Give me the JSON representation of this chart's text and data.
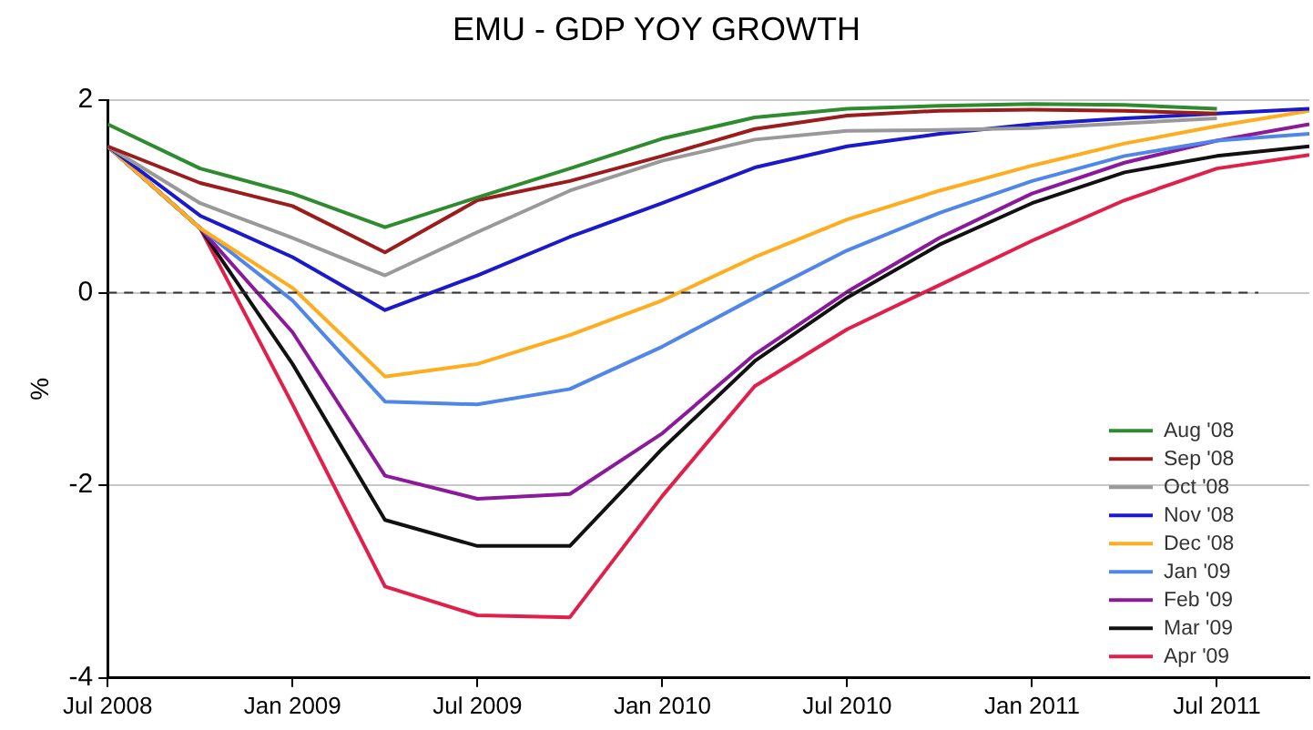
{
  "chart_data": {
    "type": "line",
    "title": "EMU - GDP YOY GROWTH",
    "ylabel": "%",
    "x": [
      "2008-07",
      "2008-10",
      "2009-01",
      "2009-04",
      "2009-07",
      "2009-10",
      "2010-01",
      "2010-04",
      "2010-07",
      "2010-10",
      "2011-01",
      "2011-04",
      "2011-07",
      "2011-10"
    ],
    "xlim": [
      "2008-07",
      "2011-10"
    ],
    "xticks": [
      {
        "value": "2008-07",
        "label": "Jul 2008"
      },
      {
        "value": "2009-01",
        "label": "Jan 2009"
      },
      {
        "value": "2009-07",
        "label": "Jul 2009"
      },
      {
        "value": "2010-01",
        "label": "Jan 2010"
      },
      {
        "value": "2010-07",
        "label": "Jul 2010"
      },
      {
        "value": "2011-01",
        "label": "Jan 2011"
      },
      {
        "value": "2011-07",
        "label": "Jul 2011"
      }
    ],
    "ylim": [
      -4,
      2
    ],
    "yticks": [
      -4,
      -2,
      0,
      2
    ],
    "grid": "y",
    "legend": "bottom right",
    "marker": "none",
    "line_style": "solid",
    "ref_lines": [
      {
        "axis": "y",
        "value": 0,
        "color": "#333333",
        "line_style": "dashed"
      }
    ],
    "series": [
      {
        "name": "Aug '08",
        "color": "#2e8b2e",
        "values": [
          1.75,
          1.29,
          1.03,
          0.68,
          0.99,
          1.29,
          1.6,
          1.82,
          1.91,
          1.94,
          1.96,
          1.95,
          1.91,
          null
        ]
      },
      {
        "name": "Sep '08",
        "color": "#9b1c1c",
        "values": [
          1.52,
          1.14,
          0.9,
          0.42,
          0.96,
          1.16,
          1.42,
          1.7,
          1.84,
          1.89,
          1.9,
          1.89,
          1.86,
          null
        ]
      },
      {
        "name": "Oct '08",
        "color": "#999999",
        "values": [
          1.52,
          0.93,
          0.57,
          0.18,
          0.63,
          1.06,
          1.37,
          1.59,
          1.68,
          1.69,
          1.71,
          1.76,
          1.81,
          null
        ]
      },
      {
        "name": "Nov '08",
        "color": "#1a1acc",
        "values": [
          1.52,
          0.8,
          0.37,
          -0.18,
          0.18,
          0.58,
          0.93,
          1.3,
          1.52,
          1.65,
          1.75,
          1.81,
          1.86,
          1.91
        ]
      },
      {
        "name": "Dec '08",
        "color": "#ffad1f",
        "values": [
          1.52,
          0.67,
          0.05,
          -0.87,
          -0.74,
          -0.44,
          -0.08,
          0.37,
          0.76,
          1.06,
          1.32,
          1.55,
          1.73,
          1.89
        ]
      },
      {
        "name": "Jan '09",
        "color": "#4f86e8",
        "values": [
          1.52,
          0.67,
          -0.08,
          -1.13,
          -1.16,
          -1.0,
          -0.56,
          -0.05,
          0.44,
          0.83,
          1.16,
          1.42,
          1.58,
          1.65
        ]
      },
      {
        "name": "Feb '09",
        "color": "#8b1a9b",
        "values": [
          1.52,
          0.67,
          -0.41,
          -1.9,
          -2.14,
          -2.09,
          -1.46,
          -0.64,
          0.01,
          0.57,
          1.03,
          1.35,
          1.58,
          1.75
        ]
      },
      {
        "name": "Mar '09",
        "color": "#111111",
        "values": [
          1.52,
          0.67,
          -0.74,
          -2.36,
          -2.63,
          -2.63,
          -1.62,
          -0.71,
          -0.05,
          0.5,
          0.93,
          1.25,
          1.42,
          1.52
        ]
      },
      {
        "name": "Apr '09",
        "color": "#e0204a",
        "values": [
          1.52,
          0.67,
          -1.16,
          -3.05,
          -3.35,
          -3.37,
          -2.11,
          -0.97,
          -0.38,
          0.08,
          0.54,
          0.96,
          1.29,
          1.43
        ]
      }
    ]
  }
}
